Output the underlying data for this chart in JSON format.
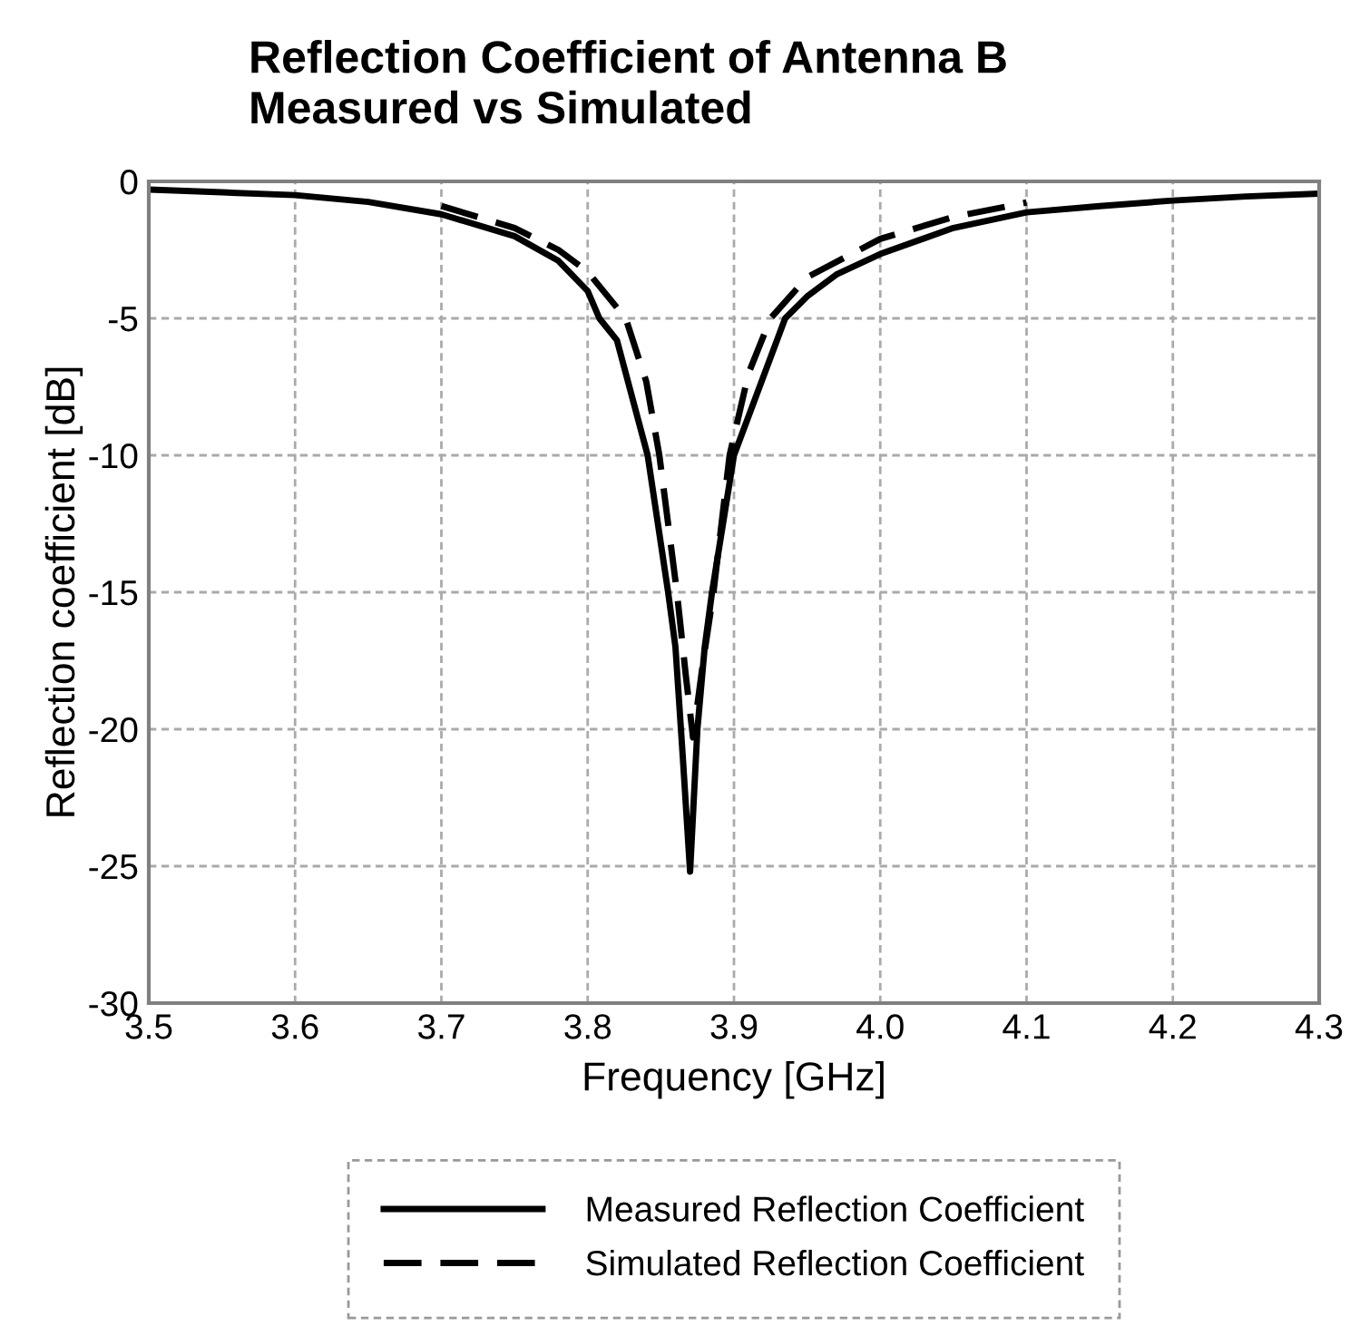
{
  "chart_data": {
    "type": "line",
    "title": "Reflection Coefficient of Antenna B\nMeasured vs Simulated",
    "xlabel": "Frequency [GHz]",
    "ylabel": "Reflection coefficient [dB]",
    "xlim": [
      3.5,
      4.3
    ],
    "xticks": [
      {
        "value": 3.5,
        "label": "3.5"
      },
      {
        "value": 3.6,
        "label": "3.6"
      },
      {
        "value": 3.7,
        "label": "3.7"
      },
      {
        "value": 3.8,
        "label": "3.8"
      },
      {
        "value": 3.9,
        "label": "3.9"
      },
      {
        "value": 4.0,
        "label": "4.0"
      },
      {
        "value": 4.1,
        "label": "4.1"
      },
      {
        "value": 4.2,
        "label": "4.2"
      },
      {
        "value": 4.3,
        "label": "4.3"
      }
    ],
    "ylim": [
      -30,
      0
    ],
    "yticks": [
      -30,
      -25,
      -20,
      -15,
      -10,
      -5,
      0
    ],
    "grid": true,
    "legend": "bottom",
    "series": [
      {
        "name": "Measured Reflection Coefficient",
        "color": "#000000",
        "line_style": "solid",
        "x": [
          3.5,
          3.55,
          3.6,
          3.65,
          3.7,
          3.75,
          3.78,
          3.8,
          3.808,
          3.82,
          3.841,
          3.855,
          3.86,
          3.865,
          3.87,
          3.875,
          3.88,
          3.885,
          3.9,
          3.935,
          3.95,
          3.97,
          4.0,
          4.05,
          4.1,
          4.15,
          4.2,
          4.25,
          4.3
        ],
        "values": [
          -0.3,
          -0.4,
          -0.5,
          -0.75,
          -1.2,
          -2.0,
          -2.9,
          -4.0,
          -5.0,
          -5.8,
          -10,
          -15,
          -17,
          -21,
          -25.2,
          -20,
          -17,
          -15,
          -10,
          -5,
          -4.2,
          -3.4,
          -2.65,
          -1.7,
          -1.13,
          -0.9,
          -0.7,
          -0.55,
          -0.45
        ]
      },
      {
        "name": "Simulated Reflection Coefficient",
        "color": "#000000",
        "line_style": "dashed",
        "x": [
          3.7,
          3.75,
          3.78,
          3.8,
          3.826,
          3.84,
          3.849,
          3.861,
          3.867,
          3.872,
          3.879,
          3.886,
          3.897,
          3.91,
          3.925,
          3.95,
          4.0,
          4.05,
          4.1
        ],
        "values": [
          -0.9,
          -1.7,
          -2.5,
          -3.3,
          -5,
          -7.3,
          -10,
          -15,
          -18,
          -20.3,
          -17.5,
          -15,
          -10,
          -7,
          -5,
          -3.5,
          -2.1,
          -1.3,
          -0.77
        ]
      }
    ]
  }
}
